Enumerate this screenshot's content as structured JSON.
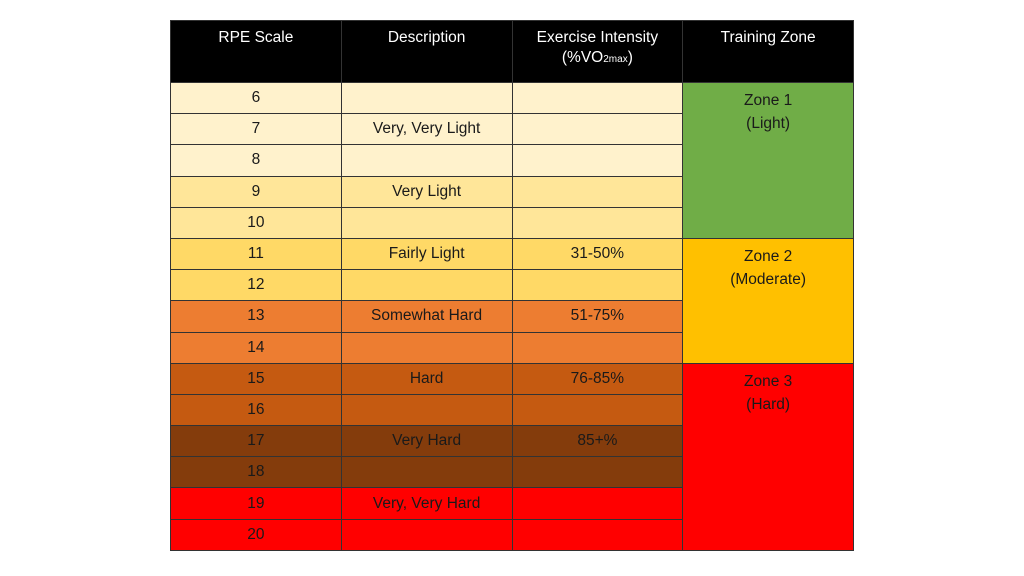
{
  "headers": {
    "rpe": "RPE Scale",
    "description": "Description",
    "intensity": "Exercise Intensity",
    "intensity_unit_prefix": "(%VO",
    "intensity_unit_sub": "2max",
    "intensity_unit_suffix": ")",
    "zone": "Training Zone"
  },
  "rows": [
    {
      "rpe": "6",
      "description": "",
      "intensity": "",
      "color": "#FFF2CC"
    },
    {
      "rpe": "7",
      "description": "Very, Very Light",
      "intensity": "",
      "color": "#FFF2CC"
    },
    {
      "rpe": "8",
      "description": "",
      "intensity": "",
      "color": "#FFF2CC"
    },
    {
      "rpe": "9",
      "description": "Very Light",
      "intensity": "",
      "color": "#FFE699"
    },
    {
      "rpe": "10",
      "description": "",
      "intensity": "",
      "color": "#FFE699"
    },
    {
      "rpe": "11",
      "description": "Fairly Light",
      "intensity": "31-50%",
      "color": "#FFD966"
    },
    {
      "rpe": "12",
      "description": "",
      "intensity": "",
      "color": "#FFD966"
    },
    {
      "rpe": "13",
      "description": "Somewhat Hard",
      "intensity": "51-75%",
      "color": "#ED7D31"
    },
    {
      "rpe": "14",
      "description": "",
      "intensity": "",
      "color": "#ED7D31"
    },
    {
      "rpe": "15",
      "description": "Hard",
      "intensity": "76-85%",
      "color": "#C55A11"
    },
    {
      "rpe": "16",
      "description": "",
      "intensity": "",
      "color": "#C55A11"
    },
    {
      "rpe": "17",
      "description": "Very Hard",
      "intensity": "85+%",
      "color": "#843C0C"
    },
    {
      "rpe": "18",
      "description": "",
      "intensity": "",
      "color": "#843C0C"
    },
    {
      "rpe": "19",
      "description": "Very, Very Hard",
      "intensity": "",
      "color": "#FF0000"
    },
    {
      "rpe": "20",
      "description": "",
      "intensity": "",
      "color": "#FF0000"
    }
  ],
  "zones": [
    {
      "name": "Zone 1",
      "label": "(Light)",
      "color": "#70AD47",
      "rows": 5
    },
    {
      "name": "Zone 2",
      "label": "(Moderate)",
      "color": "#FFC000",
      "rows": 4
    },
    {
      "name": "Zone 3",
      "label": "(Hard)",
      "color": "#FF0000",
      "rows": 6
    }
  ]
}
